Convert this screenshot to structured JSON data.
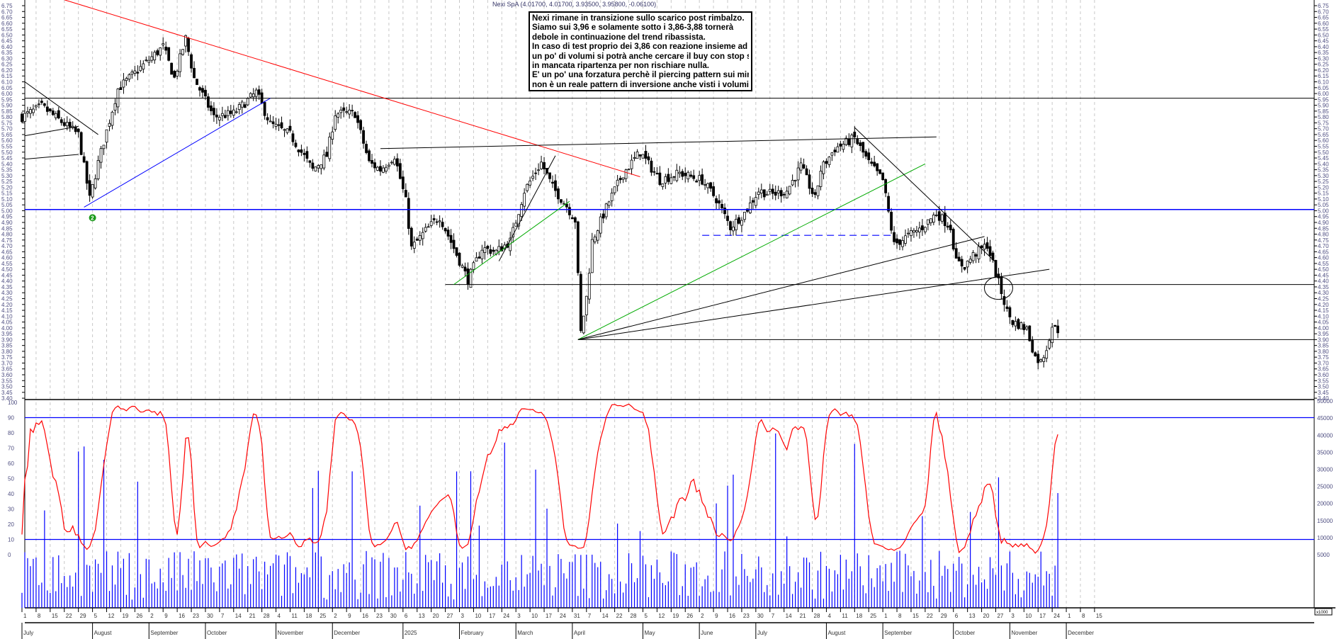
{
  "chart_data": {
    "type": "candlestick",
    "title": "Nexi SpA (4.01700, 4.01700, 3.93500, 3.95800, -0.06100)",
    "annotation": [
      "Nexi rimane in transizione sullo scarico post rimbalzo.",
      "Siamo sui 3,96 e solamente sotto i 3,86-3,88 tornerà",
      "debole in continuazione del trend ribassista.",
      "In caso di test proprio dei 3,86 con reazione insieme ad",
      "un po' di volumi si potrà anche cercare il buy con stop stretto",
      "in mancata ripartenza per non rischiare nulla.",
      "E' un po' una forzatura perchè il piercing pattern sui minimi",
      "non è un reale pattern di inversione anche visti i volumi."
    ],
    "last_ohlc": {
      "open": 4.017,
      "high": 4.017,
      "low": 3.935,
      "close": 3.958,
      "change": -0.061
    },
    "price_axis": {
      "min": 3.4,
      "max": 6.75,
      "step": 0.05
    },
    "oscillator_axis": {
      "min": 0,
      "max": 100,
      "step": 10,
      "levels": [
        10,
        90
      ]
    },
    "volume_axis": {
      "ticks": [
        5000,
        10000,
        15000,
        20000,
        25000,
        30000,
        35000,
        40000,
        45000,
        50000
      ],
      "unit_label": "x1000"
    },
    "close_path_trading_day": [
      [
        0,
        5.8
      ],
      [
        7,
        5.89
      ],
      [
        15,
        5.74
      ],
      [
        20,
        5.65
      ],
      [
        24,
        5.1
      ],
      [
        27,
        5.41
      ],
      [
        32,
        5.86
      ],
      [
        34,
        6.04
      ],
      [
        42,
        6.22
      ],
      [
        50,
        6.4
      ],
      [
        54,
        6.13
      ],
      [
        58,
        6.47
      ],
      [
        61,
        6.13
      ],
      [
        68,
        5.8
      ],
      [
        75,
        5.83
      ],
      [
        83,
        6.01
      ],
      [
        88,
        5.74
      ],
      [
        95,
        5.65
      ],
      [
        103,
        5.35
      ],
      [
        108,
        5.47
      ],
      [
        111,
        5.83
      ],
      [
        118,
        5.83
      ],
      [
        123,
        5.41
      ],
      [
        127,
        5.35
      ],
      [
        132,
        5.47
      ],
      [
        136,
        5.08
      ],
      [
        138,
        4.68
      ],
      [
        143,
        4.83
      ],
      [
        148,
        4.95
      ],
      [
        153,
        4.68
      ],
      [
        158,
        4.41
      ],
      [
        163,
        4.68
      ],
      [
        168,
        4.65
      ],
      [
        173,
        4.74
      ],
      [
        178,
        5.17
      ],
      [
        184,
        5.41
      ],
      [
        188,
        5.2
      ],
      [
        193,
        5.04
      ],
      [
        196,
        4.92
      ],
      [
        198,
        3.96
      ],
      [
        200,
        4.26
      ],
      [
        202,
        4.74
      ],
      [
        208,
        5.08
      ],
      [
        213,
        5.32
      ],
      [
        219,
        5.5
      ],
      [
        226,
        5.26
      ],
      [
        233,
        5.32
      ],
      [
        241,
        5.26
      ],
      [
        246,
        5.1
      ],
      [
        251,
        4.86
      ],
      [
        256,
        4.98
      ],
      [
        261,
        5.17
      ],
      [
        266,
        5.14
      ],
      [
        271,
        5.17
      ],
      [
        276,
        5.38
      ],
      [
        281,
        5.1
      ],
      [
        283,
        5.35
      ],
      [
        288,
        5.53
      ],
      [
        295,
        5.62
      ],
      [
        300,
        5.41
      ],
      [
        305,
        5.26
      ],
      [
        309,
        4.71
      ],
      [
        313,
        4.77
      ],
      [
        319,
        4.86
      ],
      [
        324,
        4.98
      ],
      [
        329,
        4.86
      ],
      [
        331,
        4.56
      ],
      [
        334,
        4.53
      ],
      [
        337,
        4.62
      ],
      [
        342,
        4.71
      ],
      [
        345,
        4.47
      ],
      [
        349,
        4.14
      ],
      [
        351,
        4.05
      ],
      [
        354,
        4.02
      ],
      [
        356,
        3.99
      ],
      [
        359,
        3.75
      ],
      [
        361,
        3.71
      ],
      [
        363,
        3.83
      ],
      [
        365,
        4.02
      ],
      [
        367,
        3.96
      ]
    ],
    "horizontal_levels": [
      {
        "price": 5.96,
        "from": 0,
        "color": "#000000"
      },
      {
        "price": 5.01,
        "from": 0,
        "color": "#0000ff"
      },
      {
        "price": 4.37,
        "from": 150,
        "color": "#000000"
      },
      {
        "price": 3.9,
        "from": 197,
        "color": "#000000"
      }
    ],
    "dashed_level": {
      "price": 4.79,
      "from": 241,
      "to": 309,
      "color": "#0000ff"
    },
    "trendlines": [
      {
        "d1": 15,
        "p1": 6.8,
        "d2": 219,
        "p2": 5.29,
        "color": "#ff0000"
      },
      {
        "d1": 22,
        "p1": 5.03,
        "d2": 88,
        "p2": 5.96,
        "color": "#0000ff"
      },
      {
        "d1": 0,
        "p1": 6.1,
        "d2": 27,
        "p2": 5.65,
        "color": "#000000"
      },
      {
        "d1": 0,
        "p1": 5.64,
        "d2": 20,
        "p2": 5.72,
        "color": "#000000"
      },
      {
        "d1": 0,
        "p1": 5.44,
        "d2": 20,
        "p2": 5.48,
        "color": "#000000"
      },
      {
        "d1": 127,
        "p1": 5.53,
        "d2": 324,
        "p2": 5.63,
        "color": "#000000"
      },
      {
        "d1": 153,
        "p1": 4.37,
        "d2": 194,
        "p2": 5.08,
        "color": "#00aa00"
      },
      {
        "d1": 169,
        "p1": 4.57,
        "d2": 189,
        "p2": 5.47,
        "color": "#000000"
      },
      {
        "d1": 197,
        "p1": 3.9,
        "d2": 320,
        "p2": 5.4,
        "color": "#00aa00"
      },
      {
        "d1": 197,
        "p1": 3.9,
        "d2": 341,
        "p2": 4.78,
        "color": "#000000"
      },
      {
        "d1": 197,
        "p1": 3.9,
        "d2": 364,
        "p2": 4.5,
        "color": "#000000"
      },
      {
        "d1": 295,
        "p1": 5.71,
        "d2": 345,
        "p2": 4.56,
        "color": "#000000"
      }
    ],
    "ellipse": {
      "day": 346,
      "price": 4.34
    },
    "marker": {
      "day": 25,
      "price": 4.94,
      "label": "2"
    },
    "week_ticks": [
      "1",
      "8",
      "15",
      "22",
      "29",
      "5",
      "12",
      "19",
      "26",
      "2",
      "9",
      "16",
      "23",
      "30",
      "7",
      "14",
      "21",
      "28",
      "4",
      "11",
      "18",
      "25",
      "2",
      "9",
      "16",
      "23",
      "30",
      "6",
      "13",
      "20",
      "27",
      "3",
      "10",
      "17",
      "24",
      "3",
      "10",
      "17",
      "24",
      "31",
      "7",
      "14",
      "22",
      "28",
      "5",
      "12",
      "19",
      "26",
      "2",
      "9",
      "16",
      "23",
      "30",
      "7",
      "14",
      "21",
      "28",
      "4",
      "11",
      "18",
      "25",
      "1",
      "8",
      "15",
      "22",
      "29",
      "6",
      "13",
      "20",
      "27",
      "3",
      "10",
      "17",
      "24",
      "1",
      "8",
      "15"
    ],
    "months": [
      {
        "label": "July",
        "week": 0
      },
      {
        "label": "August",
        "week": 5
      },
      {
        "label": "September",
        "week": 9
      },
      {
        "label": "October",
        "week": 13
      },
      {
        "label": "November",
        "week": 18
      },
      {
        "label": "December",
        "week": 22
      },
      {
        "label": "2025",
        "week": 27
      },
      {
        "label": "February",
        "week": 31
      },
      {
        "label": "March",
        "week": 35
      },
      {
        "label": "April",
        "week": 39
      },
      {
        "label": "May",
        "week": 44
      },
      {
        "label": "June",
        "week": 48
      },
      {
        "label": "July",
        "week": 52
      },
      {
        "label": "August",
        "week": 57
      },
      {
        "label": "September",
        "week": 61
      },
      {
        "label": "October",
        "week": 66
      },
      {
        "label": "November",
        "week": 70
      },
      {
        "label": "December",
        "week": 74
      }
    ]
  }
}
